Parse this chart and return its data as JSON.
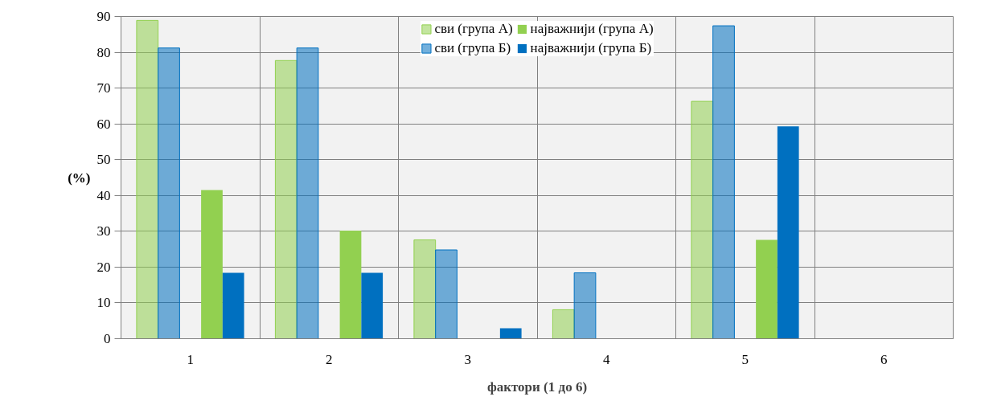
{
  "chart_data": {
    "type": "bar",
    "xlabel": "фактори (1 до 6)",
    "ylabel": "(%)",
    "categories": [
      "1",
      "2",
      "3",
      "4",
      "5",
      "6"
    ],
    "series": [
      {
        "name": "сви (група А)",
        "color": "#92d050",
        "values": [
          88.9,
          77.7,
          27.6,
          8.1,
          66.3,
          0
        ]
      },
      {
        "name": "сви (група Б)",
        "color": "#0070c0",
        "values": [
          81.2,
          81.2,
          24.8,
          18.4,
          87.4,
          0
        ]
      },
      {
        "name": "најважнији (група А)",
        "color": "#92d050",
        "values": [
          41.5,
          30.2,
          0,
          0,
          27.6,
          0
        ]
      },
      {
        "name": "најважнији (група Б)",
        "color": "#0070c0",
        "values": [
          18.4,
          18.4,
          2.9,
          0,
          59.3,
          0
        ]
      }
    ],
    "ylim": [
      0,
      90
    ],
    "yticks": [
      0,
      10,
      20,
      30,
      40,
      50,
      60,
      70,
      80,
      90
    ],
    "grid": true,
    "legend": "top"
  }
}
